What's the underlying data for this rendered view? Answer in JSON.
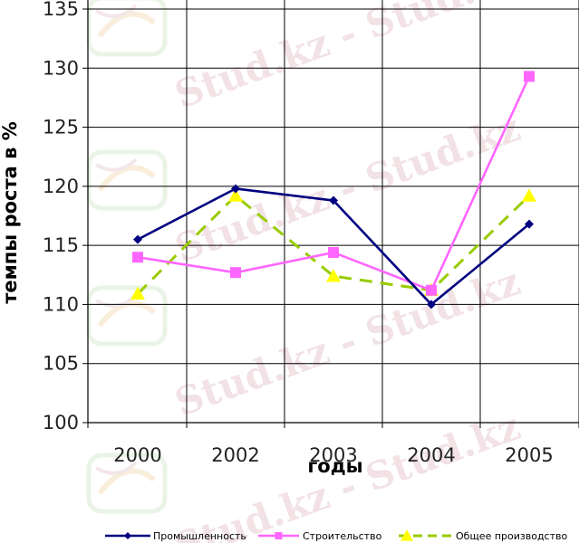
{
  "chart_data": {
    "type": "line",
    "title": "",
    "xlabel": "годы",
    "ylabel": "темпы роста в %",
    "categories": [
      "2000",
      "2002",
      "2003",
      "2004",
      "2005"
    ],
    "ylim": [
      100,
      135
    ],
    "yticks": [
      100,
      105,
      110,
      115,
      120,
      125,
      130,
      135
    ],
    "grid": true,
    "legend_position": "bottom",
    "series": [
      {
        "name": "Промышленность",
        "color": "#000080",
        "marker": "diamond",
        "dash": "solid",
        "values": [
          115.5,
          119.8,
          118.8,
          110.0,
          116.8
        ]
      },
      {
        "name": "Строительство",
        "color": "#ff66ff",
        "marker": "square",
        "dash": "solid",
        "values": [
          114.0,
          112.7,
          114.4,
          111.2,
          129.3
        ]
      },
      {
        "name": "Общее производство",
        "color": "#99cc00",
        "marker_color": "#ffff00",
        "marker": "triangle",
        "dash": "dashed",
        "values": [
          110.9,
          119.2,
          112.4,
          111.2,
          119.2
        ]
      }
    ]
  },
  "watermark": {
    "text": "Stud.kz - Stud.kz",
    "colors": {
      "pink": "#e8ccd0",
      "green": "#cfe8c8",
      "orange": "#f3d9b0"
    }
  }
}
